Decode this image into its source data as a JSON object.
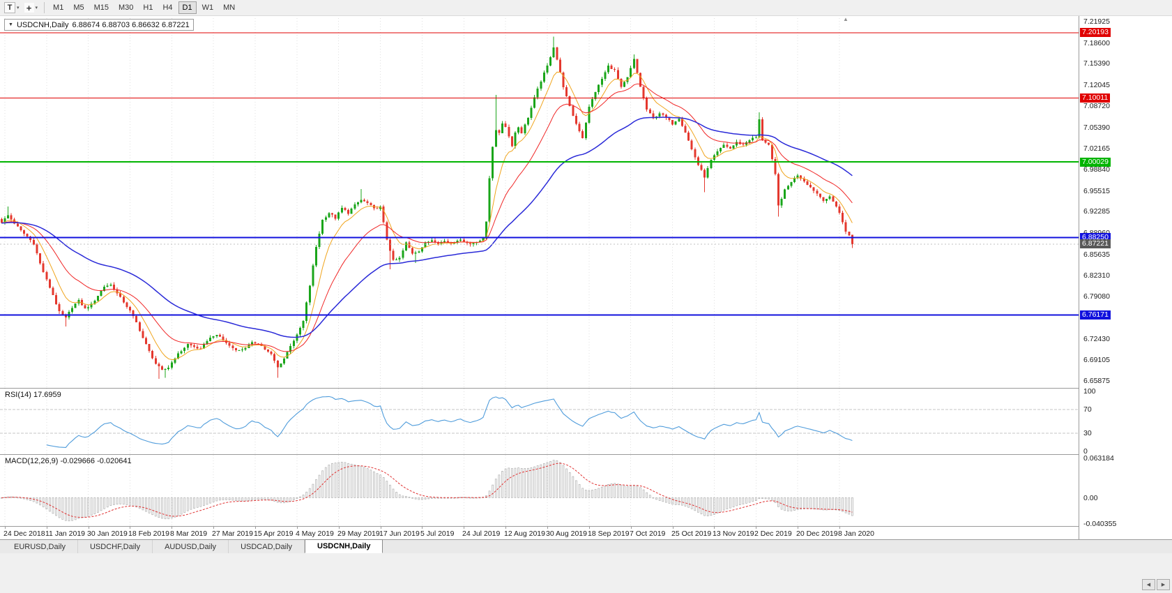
{
  "toolbar": {
    "pointer_tool": "T",
    "crosshair_glyph": "+",
    "caret": "▾",
    "timeframes": [
      "M1",
      "M5",
      "M15",
      "M30",
      "H1",
      "H4",
      "D1",
      "W1",
      "MN"
    ],
    "active_timeframe": "D1"
  },
  "chart_info": {
    "collapse_arrow": "▼",
    "symbol": "USDCNH,Daily",
    "ohlc": "6.88674 6.88703 6.86632 6.87221",
    "shift_marker": "▲"
  },
  "price_axis_ticks": [
    "7.21925",
    "7.18600",
    "7.15390",
    "7.12045",
    "7.08720",
    "7.05390",
    "7.02165",
    "6.98840",
    "6.95515",
    "6.92285",
    "6.88960",
    "6.85635",
    "6.82310",
    "6.79080",
    "6.75755",
    "6.72430",
    "6.69105",
    "6.65875"
  ],
  "levels": [
    {
      "value": 7.20193,
      "label": "7.20193",
      "color": "#e00000",
      "width": 1.3
    },
    {
      "value": 7.10011,
      "label": "7.10011",
      "color": "#e00000",
      "width": 1.3
    },
    {
      "value": 7.00029,
      "label": "7.00029",
      "color": "#00b400",
      "width": 2
    },
    {
      "value": 6.8825,
      "label": "6.88250",
      "color": "#1111dd",
      "width": 2
    },
    {
      "value": 6.76171,
      "label": "6.76171",
      "color": "#1111dd",
      "width": 2
    }
  ],
  "current_price": {
    "value": 6.87221,
    "label": "6.87221",
    "box_color": "#585858"
  },
  "time_labels": [
    "24 Dec 2018",
    "11 Jan 2019",
    "30 Jan 2019",
    "18 Feb 2019",
    "8 Mar 2019",
    "27 Mar 2019",
    "15 Apr 2019",
    "4 May 2019",
    "29 May 2019",
    "17 Jun 2019",
    "5 Jul 2019",
    "24 Jul 2019",
    "12 Aug 2019",
    "30 Aug 2019",
    "18 Sep 2019",
    "7 Oct 2019",
    "25 Oct 2019",
    "13 Nov 2019",
    "2 Dec 2019",
    "20 Dec 2019",
    "8 Jan 2020"
  ],
  "rsi": {
    "label": "RSI(14) 17.6959",
    "value": 17.6959,
    "period": 14,
    "upper": 70,
    "lower": 30,
    "axis": [
      100,
      70,
      30,
      0
    ],
    "line_color": "#4f9cdb"
  },
  "macd": {
    "label": "MACD(12,26,9) -0.029666 -0.020641",
    "main_value": -0.029666,
    "signal_value": -0.020641,
    "fast": 12,
    "slow": 26,
    "signal": 9,
    "axis_top": "0.063184",
    "axis_zero": "0.00",
    "axis_bottom": "-0.040355",
    "histogram_color": "#b6b6b6",
    "signal_color": "#e03232"
  },
  "tabs": [
    {
      "label": "EURUSD,Daily",
      "active": false
    },
    {
      "label": "USDCHF,Daily",
      "active": false
    },
    {
      "label": "AUDUSD,Daily",
      "active": false
    },
    {
      "label": "USDCAD,Daily",
      "active": false
    },
    {
      "label": "USDCNH,Daily",
      "active": true
    }
  ],
  "tab_scroll": {
    "left": "◀",
    "right": "▶"
  },
  "chart_data": {
    "type": "candlestick",
    "symbol": "USDCNH",
    "timeframe": "Daily",
    "title": "USDCNH,Daily",
    "price_max": 7.229,
    "price_min": 6.648,
    "slots": 336,
    "bar_count": 266,
    "first_label_bar": 1,
    "label_step": 13,
    "noise": 0.003,
    "wick": 0.004,
    "up_color": "#1aa51a",
    "down_color": "#e4382e",
    "ma": [
      {
        "period": 8,
        "color": "#f0a41c",
        "width": 1
      },
      {
        "period": 21,
        "color": "#f02525",
        "width": 1
      },
      {
        "period": 55,
        "color": "#2a2ad8",
        "width": 1.5
      }
    ],
    "last_bar": {
      "open": 6.88674,
      "high": 6.88703,
      "low": 6.86632,
      "close": 6.87221
    },
    "wick_overrides": [
      [
        2,
        6.931,
        null
      ],
      [
        20,
        null,
        6.744
      ],
      [
        49,
        null,
        6.662
      ],
      [
        51,
        null,
        6.664
      ],
      [
        86,
        null,
        6.664
      ],
      [
        112,
        6.958,
        null
      ],
      [
        121,
        null,
        6.833
      ],
      [
        129,
        null,
        6.843
      ],
      [
        154,
        7.105,
        null
      ],
      [
        172,
        7.196,
        null
      ],
      [
        197,
        7.168,
        null
      ],
      [
        219,
        null,
        6.953
      ],
      [
        236,
        7.078,
        null
      ],
      [
        242,
        null,
        6.915
      ]
    ],
    "close_keypoints": [
      [
        0,
        6.906
      ],
      [
        2,
        6.917
      ],
      [
        4,
        6.905
      ],
      [
        6,
        6.893
      ],
      [
        8,
        6.884
      ],
      [
        10,
        6.873
      ],
      [
        12,
        6.842
      ],
      [
        14,
        6.816
      ],
      [
        16,
        6.793
      ],
      [
        18,
        6.766
      ],
      [
        20,
        6.757
      ],
      [
        22,
        6.774
      ],
      [
        24,
        6.784
      ],
      [
        26,
        6.771
      ],
      [
        28,
        6.778
      ],
      [
        30,
        6.792
      ],
      [
        32,
        6.806
      ],
      [
        34,
        6.809
      ],
      [
        36,
        6.795
      ],
      [
        38,
        6.782
      ],
      [
        40,
        6.768
      ],
      [
        42,
        6.75
      ],
      [
        44,
        6.726
      ],
      [
        46,
        6.705
      ],
      [
        48,
        6.686
      ],
      [
        50,
        6.675
      ],
      [
        52,
        6.68
      ],
      [
        54,
        6.695
      ],
      [
        56,
        6.706
      ],
      [
        58,
        6.716
      ],
      [
        60,
        6.712
      ],
      [
        62,
        6.708
      ],
      [
        64,
        6.722
      ],
      [
        66,
        6.73
      ],
      [
        68,
        6.728
      ],
      [
        70,
        6.718
      ],
      [
        72,
        6.71
      ],
      [
        74,
        6.706
      ],
      [
        76,
        6.711
      ],
      [
        78,
        6.718
      ],
      [
        80,
        6.718
      ],
      [
        82,
        6.708
      ],
      [
        84,
        6.7
      ],
      [
        86,
        6.68
      ],
      [
        88,
        6.694
      ],
      [
        90,
        6.714
      ],
      [
        92,
        6.73
      ],
      [
        94,
        6.752
      ],
      [
        96,
        6.808
      ],
      [
        98,
        6.868
      ],
      [
        100,
        6.91
      ],
      [
        102,
        6.921
      ],
      [
        104,
        6.913
      ],
      [
        106,
        6.928
      ],
      [
        108,
        6.921
      ],
      [
        110,
        6.933
      ],
      [
        112,
        6.941
      ],
      [
        114,
        6.936
      ],
      [
        116,
        6.927
      ],
      [
        118,
        6.93
      ],
      [
        120,
        6.88
      ],
      [
        122,
        6.846
      ],
      [
        124,
        6.85
      ],
      [
        126,
        6.874
      ],
      [
        128,
        6.858
      ],
      [
        130,
        6.862
      ],
      [
        132,
        6.873
      ],
      [
        134,
        6.879
      ],
      [
        136,
        6.874
      ],
      [
        138,
        6.877
      ],
      [
        140,
        6.873
      ],
      [
        142,
        6.879
      ],
      [
        144,
        6.877
      ],
      [
        146,
        6.872
      ],
      [
        148,
        6.876
      ],
      [
        150,
        6.882
      ],
      [
        151,
        6.906
      ],
      [
        152,
        6.975
      ],
      [
        153,
        7.025
      ],
      [
        154,
        7.051
      ],
      [
        155,
        7.044
      ],
      [
        156,
        7.061
      ],
      [
        157,
        7.056
      ],
      [
        158,
        7.04
      ],
      [
        159,
        7.026
      ],
      [
        160,
        7.046
      ],
      [
        161,
        7.055
      ],
      [
        162,
        7.046
      ],
      [
        164,
        7.07
      ],
      [
        166,
        7.1
      ],
      [
        168,
        7.127
      ],
      [
        170,
        7.15
      ],
      [
        172,
        7.18
      ],
      [
        173,
        7.16
      ],
      [
        175,
        7.118
      ],
      [
        177,
        7.086
      ],
      [
        179,
        7.06
      ],
      [
        181,
        7.038
      ],
      [
        183,
        7.086
      ],
      [
        185,
        7.11
      ],
      [
        187,
        7.13
      ],
      [
        189,
        7.15
      ],
      [
        191,
        7.143
      ],
      [
        193,
        7.116
      ],
      [
        195,
        7.132
      ],
      [
        197,
        7.16
      ],
      [
        199,
        7.118
      ],
      [
        201,
        7.082
      ],
      [
        203,
        7.068
      ],
      [
        205,
        7.077
      ],
      [
        207,
        7.069
      ],
      [
        209,
        7.06
      ],
      [
        211,
        7.069
      ],
      [
        213,
        7.047
      ],
      [
        215,
        7.02
      ],
      [
        217,
        6.996
      ],
      [
        219,
        6.977
      ],
      [
        221,
        7.003
      ],
      [
        223,
        7.016
      ],
      [
        225,
        7.027
      ],
      [
        227,
        7.021
      ],
      [
        229,
        7.031
      ],
      [
        231,
        7.027
      ],
      [
        233,
        7.035
      ],
      [
        235,
        7.039
      ],
      [
        236,
        7.066
      ],
      [
        237,
        7.035
      ],
      [
        239,
        7.027
      ],
      [
        241,
        6.98
      ],
      [
        242,
        6.932
      ],
      [
        244,
        6.956
      ],
      [
        246,
        6.97
      ],
      [
        248,
        6.98
      ],
      [
        250,
        6.971
      ],
      [
        252,
        6.961
      ],
      [
        254,
        6.951
      ],
      [
        256,
        6.941
      ],
      [
        258,
        6.945
      ],
      [
        260,
        6.932
      ],
      [
        261,
        6.921
      ],
      [
        262,
        6.906
      ],
      [
        263,
        6.892
      ],
      [
        264,
        6.887
      ],
      [
        265,
        6.87221
      ]
    ]
  }
}
